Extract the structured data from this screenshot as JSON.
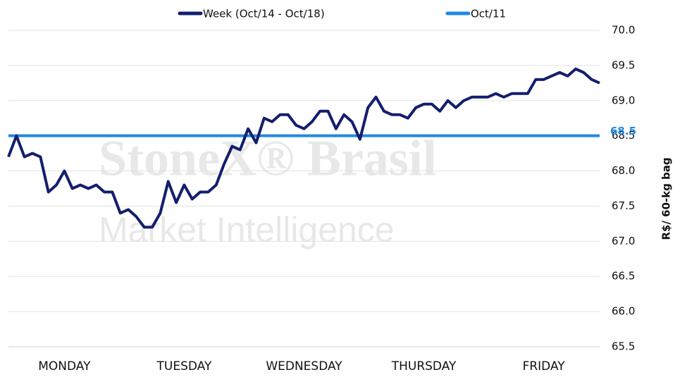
{
  "chart_data": {
    "type": "line",
    "watermark": [
      "StoneX® Brasil",
      "Market Intelligence"
    ],
    "y_axis_label": "R$/ 60-kg bag",
    "categories": [
      null,
      null,
      null,
      null,
      null,
      null,
      null,
      "MONDAY",
      null,
      null,
      null,
      null,
      null,
      null,
      null,
      null,
      null,
      null,
      null,
      null,
      null,
      null,
      "TUESDAY",
      null,
      null,
      null,
      null,
      null,
      null,
      null,
      null,
      null,
      null,
      null,
      null,
      null,
      null,
      "WEDNESDAY",
      null,
      null,
      null,
      null,
      null,
      null,
      null,
      null,
      null,
      null,
      null,
      null,
      null,
      null,
      "THURSDAY",
      null,
      null,
      null,
      null,
      null,
      null,
      null,
      null,
      null,
      null,
      null,
      null,
      null,
      null,
      "FRIDAY",
      null,
      null,
      null,
      null,
      null,
      null,
      null
    ],
    "series": [
      {
        "name": "Week (Oct/14 - Oct/18)",
        "color": "#141e6e",
        "values": [
          68.2,
          68.5,
          68.2,
          68.25,
          68.2,
          67.7,
          67.8,
          68.0,
          67.75,
          67.8,
          67.75,
          67.8,
          67.7,
          67.7,
          67.4,
          67.45,
          67.35,
          67.2,
          67.2,
          67.4,
          67.85,
          67.55,
          67.8,
          67.6,
          67.7,
          67.7,
          67.8,
          68.1,
          68.35,
          68.3,
          68.6,
          68.4,
          68.75,
          68.7,
          68.8,
          68.8,
          68.65,
          68.6,
          68.7,
          68.85,
          68.85,
          68.6,
          68.8,
          68.7,
          68.45,
          68.9,
          69.05,
          68.85,
          68.8,
          68.8,
          68.75,
          68.9,
          68.95,
          68.95,
          68.85,
          69.0,
          68.9,
          69.0,
          69.05,
          69.05,
          69.05,
          69.1,
          69.05,
          69.1,
          69.1,
          69.1,
          69.3,
          69.3,
          69.35,
          69.4,
          69.35,
          69.45,
          69.4,
          69.3,
          69.25
        ]
      },
      {
        "name": "Oct/11",
        "color": "#1e88e5",
        "values": [
          68.5,
          68.5,
          68.5,
          68.5,
          68.5,
          68.5,
          68.5,
          68.5,
          68.5,
          68.5,
          68.5,
          68.5,
          68.5,
          68.5,
          68.5,
          68.5,
          68.5,
          68.5,
          68.5,
          68.5,
          68.5,
          68.5,
          68.5,
          68.5,
          68.5,
          68.5,
          68.5,
          68.5,
          68.5,
          68.5,
          68.5,
          68.5,
          68.5,
          68.5,
          68.5,
          68.5,
          68.5,
          68.5,
          68.5,
          68.5,
          68.5,
          68.5,
          68.5,
          68.5,
          68.5,
          68.5,
          68.5,
          68.5,
          68.5,
          68.5,
          68.5,
          68.5,
          68.5,
          68.5,
          68.5,
          68.5,
          68.5,
          68.5,
          68.5,
          68.5,
          68.5,
          68.5,
          68.5,
          68.5,
          68.5,
          68.5,
          68.5,
          68.5,
          68.5,
          68.5,
          68.5,
          68.5,
          68.5,
          68.5,
          68.5
        ]
      }
    ],
    "ylim": [
      65.5,
      70
    ],
    "yticks": [
      {
        "value": 65.5,
        "label": "65.5"
      },
      {
        "value": 66,
        "label": "66.0"
      },
      {
        "value": 66.5,
        "label": "66.5"
      },
      {
        "value": 67,
        "label": "67.0"
      },
      {
        "value": 67.5,
        "label": "67.5"
      },
      {
        "value": 68,
        "label": "68.0"
      },
      {
        "value": 68.5,
        "label": "68.5"
      },
      {
        "value": 69,
        "label": "69.0"
      },
      {
        "value": 69.5,
        "label": "69.5"
      },
      {
        "value": 70,
        "label": "70.0"
      }
    ],
    "grid": true,
    "legend": "top"
  }
}
